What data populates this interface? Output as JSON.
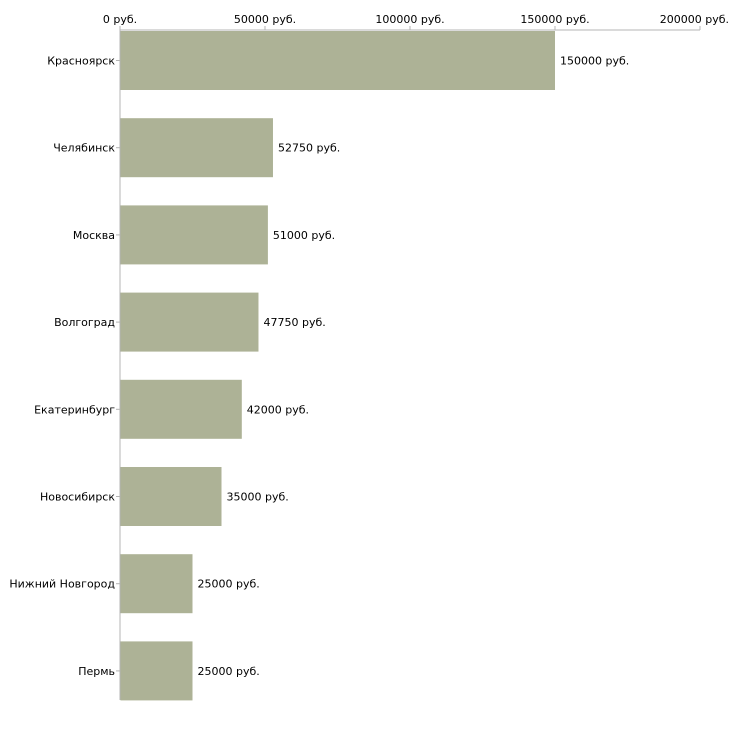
{
  "chart_data": {
    "type": "bar",
    "orientation": "horizontal",
    "categories": [
      "Красноярск",
      "Челябинск",
      "Москва",
      "Волгоград",
      "Екатеринбург",
      "Новосибирск",
      "Нижний Новгород",
      "Пермь"
    ],
    "values": [
      150000,
      52750,
      51000,
      47750,
      42000,
      35000,
      25000,
      25000
    ],
    "value_labels": [
      "150000 руб.",
      "52750 руб.",
      "51000 руб.",
      "47750 руб.",
      "42000 руб.",
      "35000 руб.",
      "25000 руб.",
      "25000 руб."
    ],
    "x_ticks": [
      0,
      50000,
      100000,
      150000,
      200000
    ],
    "x_tick_labels": [
      "0 руб.",
      "50000 руб.",
      "100000 руб.",
      "150000 руб.",
      "200000 руб."
    ],
    "xlim": [
      0,
      200000
    ],
    "title": "",
    "xlabel": "",
    "ylabel": "",
    "grid": false,
    "legend": "none",
    "axis_position": "top"
  },
  "colors": {
    "bar": "#adb296",
    "axis": "#b4b4b4",
    "text": "#000000"
  }
}
